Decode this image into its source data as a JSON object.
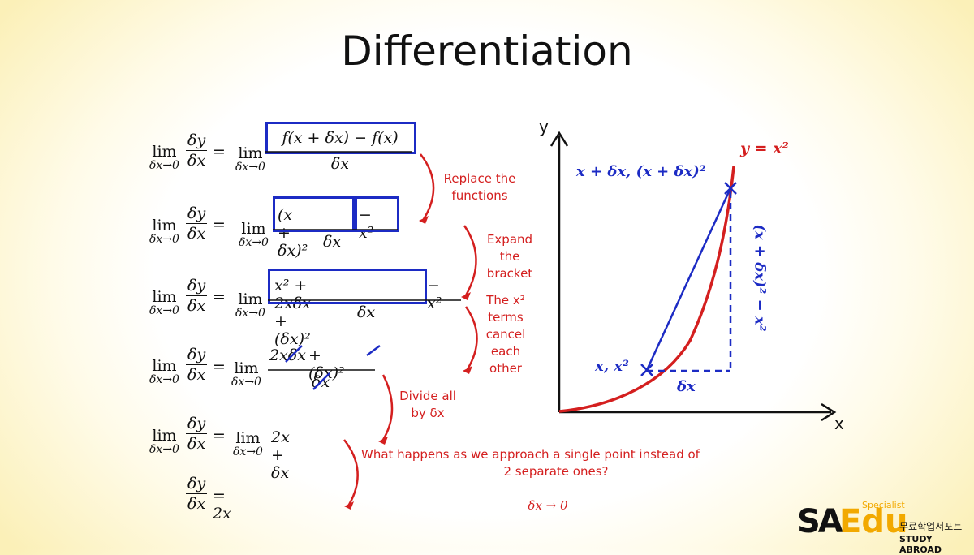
{
  "title": "Differentiation",
  "lhs": {
    "num": "δy",
    "den": "δx",
    "lim": "lim",
    "sub": "δx→0",
    "eq": "="
  },
  "steps": {
    "s1": {
      "num": "f(x + δx) − f(x)",
      "den": "δx"
    },
    "s2": {
      "num_boxed": "(x + δx)²",
      "num_rest": "− x²",
      "den": "δx"
    },
    "s3": {
      "num_boxed": "x² + 2xδx + (δx)²",
      "num_rest": "− x²",
      "den": "δx"
    },
    "s4": {
      "num_a": "2xδx",
      "num_b": "+ (δx)²",
      "den": "δx"
    },
    "s5": {
      "expr": "2x + δx"
    },
    "s6": {
      "expr": "= 2x"
    }
  },
  "notes": {
    "replace": "Replace the functions",
    "expand": "Expand the bracket",
    "cancel": "The x² terms cancel each other",
    "divide": "Divide all by δx",
    "approach_line1": "What happens as we approach a  single point instead of",
    "approach_line2": "2 separate ones?",
    "delta_limit": "δx  →  0"
  },
  "graph": {
    "y_axis": "y",
    "x_axis": "x",
    "curve_label": "y = x²",
    "upper_point": "x + δx, (x + δx)²",
    "lower_point": "x, x²",
    "rise_label": "(x + δx)² − x²",
    "run_label": "δx"
  },
  "logo": {
    "sa": "SA",
    "edu": "Edu",
    "specialist": "Specialist",
    "korean": "무료학업서포트",
    "study": "STUDY ABROAD"
  },
  "colors": {
    "blue": "#1c2bc4",
    "red": "#d41f1f",
    "logo_yellow": "#f2a900"
  }
}
